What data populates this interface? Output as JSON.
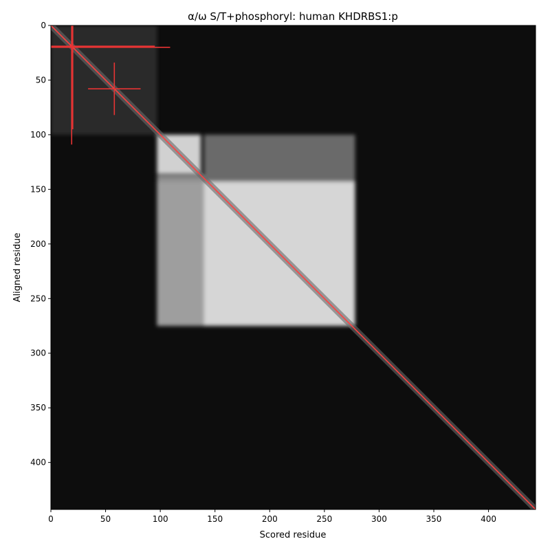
{
  "chart_data": {
    "type": "heatmap",
    "title": "α/ω S/T+phosphoryl: human KHDRBS1:p",
    "xlabel": "Scored residue",
    "ylabel": "Aligned residue",
    "xlim": [
      0,
      443
    ],
    "ylim": [
      443,
      0
    ],
    "x_ticks": [
      0,
      50,
      100,
      150,
      200,
      250,
      300,
      350,
      400
    ],
    "y_ticks": [
      0,
      50,
      100,
      150,
      200,
      250,
      300,
      350,
      400
    ],
    "colormap": "grayscale",
    "grid": false,
    "background_value": 0.05,
    "bright_regions": [
      {
        "x": [
          97,
          137
        ],
        "y": [
          100,
          136
        ],
        "value": 0.82
      },
      {
        "x": [
          140,
          278
        ],
        "y": [
          100,
          143
        ],
        "value": 0.42
      },
      {
        "x": [
          97,
          140
        ],
        "y": [
          137,
          275
        ],
        "value": 0.55
      },
      {
        "x": [
          97,
          278
        ],
        "y": [
          143,
          275
        ],
        "value": 0.62
      },
      {
        "x": [
          140,
          278
        ],
        "y": [
          143,
          275
        ],
        "value": 0.84
      },
      {
        "x": [
          0,
          97
        ],
        "y": [
          0,
          100
        ],
        "value": 0.16
      }
    ],
    "diagonal": {
      "x": [
        0,
        443
      ],
      "y": [
        0,
        443
      ],
      "color": "#ff4040"
    },
    "markers": [
      {
        "x": 20,
        "y": 19,
        "x_range": [
          0,
          95
        ],
        "y_range": [
          0,
          95
        ],
        "color": "#e83434"
      },
      {
        "x": 19,
        "y": 20,
        "x_range": [
          0,
          109
        ],
        "y_range": [
          0,
          109
        ],
        "color": "#e83434"
      },
      {
        "x": 58,
        "y": 58,
        "x_range": [
          34,
          82
        ],
        "y_range": [
          34,
          82
        ],
        "color": "#e83434"
      }
    ]
  }
}
